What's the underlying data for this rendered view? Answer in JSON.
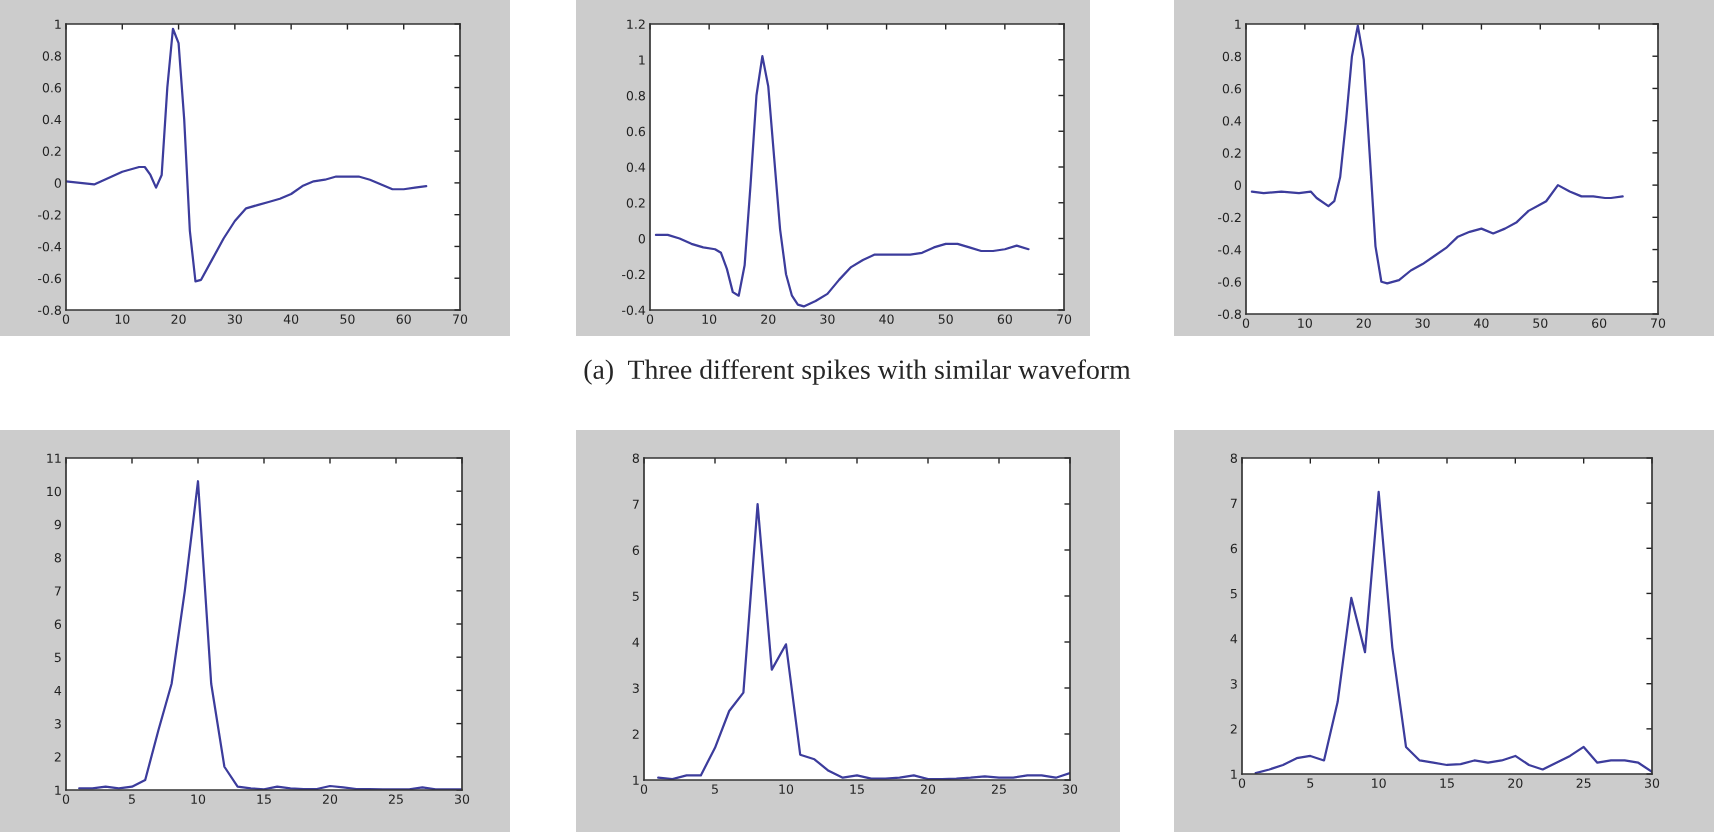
{
  "chart_data": [
    {
      "type": "line",
      "x": [
        0,
        5,
        10,
        13,
        14,
        15,
        16,
        17,
        18,
        19,
        20,
        21,
        22,
        23,
        24,
        26,
        28,
        30,
        32,
        34,
        36,
        38,
        40,
        42,
        44,
        46,
        48,
        50,
        52,
        54,
        56,
        58,
        60,
        62,
        64
      ],
      "series": [
        {
          "color": "#3c3c9c",
          "values": [
            0.01,
            -0.01,
            0.07,
            0.1,
            0.1,
            0.05,
            -0.03,
            0.05,
            0.6,
            0.97,
            0.88,
            0.4,
            -0.3,
            -0.62,
            -0.61,
            -0.48,
            -0.35,
            -0.24,
            -0.16,
            -0.14,
            -0.12,
            -0.1,
            -0.07,
            -0.02,
            0.01,
            0.02,
            0.04,
            0.04,
            0.04,
            0.02,
            -0.01,
            -0.04,
            -0.04,
            -0.03,
            -0.02
          ]
        }
      ],
      "xlim": [
        0,
        70
      ],
      "ylim": [
        -0.8,
        1
      ],
      "xticks": [
        0,
        10,
        20,
        30,
        40,
        50,
        60,
        70
      ],
      "yticks": [
        -0.8,
        -0.6,
        -0.4,
        -0.2,
        0,
        0.2,
        0.4,
        0.6,
        0.8,
        1
      ]
    },
    {
      "type": "line",
      "x": [
        1,
        3,
        5,
        7,
        9,
        11,
        12,
        13,
        14,
        15,
        16,
        17,
        18,
        19,
        20,
        21,
        22,
        23,
        24,
        25,
        26,
        28,
        30,
        32,
        34,
        36,
        38,
        40,
        44,
        46,
        48,
        50,
        52,
        54,
        56,
        58,
        60,
        62,
        64
      ],
      "series": [
        {
          "color": "#3c3c9c",
          "values": [
            0.02,
            0.02,
            0.0,
            -0.03,
            -0.05,
            -0.06,
            -0.08,
            -0.17,
            -0.3,
            -0.32,
            -0.15,
            0.3,
            0.8,
            1.02,
            0.85,
            0.45,
            0.05,
            -0.2,
            -0.32,
            -0.37,
            -0.38,
            -0.35,
            -0.31,
            -0.23,
            -0.16,
            -0.12,
            -0.09,
            -0.09,
            -0.09,
            -0.08,
            -0.05,
            -0.03,
            -0.03,
            -0.05,
            -0.07,
            -0.07,
            -0.06,
            -0.04,
            -0.06
          ]
        }
      ],
      "xlim": [
        0,
        70
      ],
      "ylim": [
        -0.4,
        1.2
      ],
      "xticks": [
        0,
        10,
        20,
        30,
        40,
        50,
        60,
        70
      ],
      "yticks": [
        -0.4,
        -0.2,
        0,
        0.2,
        0.4,
        0.6,
        0.8,
        1,
        1.2
      ],
      "annotations": [
        "(a)  Three different spikes with similar waveform"
      ]
    },
    {
      "type": "line",
      "x": [
        1,
        3,
        6,
        9,
        11,
        12,
        14,
        15,
        16,
        17,
        18,
        19,
        20,
        21,
        22,
        23,
        24,
        26,
        28,
        30,
        32,
        34,
        36,
        38,
        40,
        42,
        44,
        46,
        48,
        50,
        51,
        53,
        55,
        57,
        59,
        61,
        62,
        64
      ],
      "series": [
        {
          "color": "#3c3c9c",
          "values": [
            -0.04,
            -0.05,
            -0.04,
            -0.05,
            -0.04,
            -0.08,
            -0.13,
            -0.1,
            0.05,
            0.4,
            0.8,
            0.99,
            0.78,
            0.2,
            -0.38,
            -0.6,
            -0.61,
            -0.59,
            -0.53,
            -0.49,
            -0.44,
            -0.39,
            -0.32,
            -0.29,
            -0.27,
            -0.3,
            -0.27,
            -0.23,
            -0.16,
            -0.12,
            -0.1,
            0.0,
            -0.04,
            -0.07,
            -0.07,
            -0.08,
            -0.08,
            -0.07
          ]
        }
      ],
      "xlim": [
        0,
        70
      ],
      "ylim": [
        -0.8,
        1
      ],
      "xticks": [
        0,
        10,
        20,
        30,
        40,
        50,
        60,
        70
      ],
      "yticks": [
        -0.8,
        -0.6,
        -0.4,
        -0.2,
        0,
        0.2,
        0.4,
        0.6,
        0.8,
        1
      ]
    },
    {
      "type": "line",
      "x": [
        1,
        2,
        3,
        4,
        5,
        6,
        7,
        8,
        9,
        10,
        11,
        12,
        13,
        14,
        15,
        16,
        17,
        18,
        19,
        20,
        21,
        22,
        23,
        24,
        25,
        26,
        27,
        28,
        29,
        30
      ],
      "series": [
        {
          "color": "#3c3c9c",
          "values": [
            1.05,
            1.05,
            1.1,
            1.05,
            1.1,
            1.3,
            2.8,
            4.2,
            7,
            10.3,
            4.2,
            1.7,
            1.1,
            1.05,
            1.02,
            1.1,
            1.05,
            1.03,
            1.03,
            1.12,
            1.08,
            1.03,
            1.03,
            1.02,
            1.02,
            1.02,
            1.08,
            1.02,
            1.02,
            1.02
          ]
        }
      ],
      "xlim": [
        0,
        30
      ],
      "ylim": [
        1,
        11
      ],
      "xticks": [
        0,
        5,
        10,
        15,
        20,
        25,
        30
      ],
      "yticks": [
        1,
        2,
        3,
        4,
        5,
        6,
        7,
        8,
        9,
        10,
        11
      ]
    },
    {
      "type": "line",
      "x": [
        1,
        2,
        3,
        4,
        5,
        6,
        7,
        8,
        9,
        10,
        11,
        12,
        13,
        14,
        15,
        16,
        17,
        18,
        19,
        20,
        21,
        22,
        23,
        24,
        25,
        26,
        27,
        28,
        29,
        30
      ],
      "series": [
        {
          "color": "#3c3c9c",
          "values": [
            1.05,
            1.02,
            1.1,
            1.1,
            1.7,
            2.5,
            2.9,
            7.0,
            3.4,
            3.95,
            1.55,
            1.45,
            1.2,
            1.05,
            1.1,
            1.03,
            1.03,
            1.05,
            1.1,
            1.02,
            1.02,
            1.03,
            1.05,
            1.08,
            1.05,
            1.05,
            1.1,
            1.1,
            1.05,
            1.15
          ]
        }
      ],
      "xlim": [
        0,
        30
      ],
      "ylim": [
        1,
        8
      ],
      "xticks": [
        0,
        5,
        10,
        15,
        20,
        25,
        30
      ],
      "yticks": [
        1,
        2,
        3,
        4,
        5,
        6,
        7,
        8
      ]
    },
    {
      "type": "line",
      "x": [
        1,
        2,
        3,
        4,
        5,
        6,
        7,
        8,
        9,
        10,
        11,
        12,
        13,
        14,
        15,
        16,
        17,
        18,
        19,
        20,
        21,
        22,
        23,
        24,
        25,
        26,
        27,
        28,
        29,
        30
      ],
      "series": [
        {
          "color": "#3c3c9c",
          "values": [
            1.02,
            1.1,
            1.2,
            1.35,
            1.4,
            1.3,
            2.6,
            4.9,
            3.7,
            7.25,
            3.8,
            1.6,
            1.3,
            1.25,
            1.2,
            1.22,
            1.3,
            1.25,
            1.3,
            1.4,
            1.2,
            1.1,
            1.25,
            1.4,
            1.6,
            1.25,
            1.3,
            1.3,
            1.25,
            1.05
          ]
        }
      ],
      "xlim": [
        0,
        30
      ],
      "ylim": [
        1,
        8
      ],
      "xticks": [
        0,
        5,
        10,
        15,
        20,
        25,
        30
      ],
      "yticks": [
        1,
        2,
        3,
        4,
        5,
        6,
        7,
        8
      ]
    }
  ]
}
